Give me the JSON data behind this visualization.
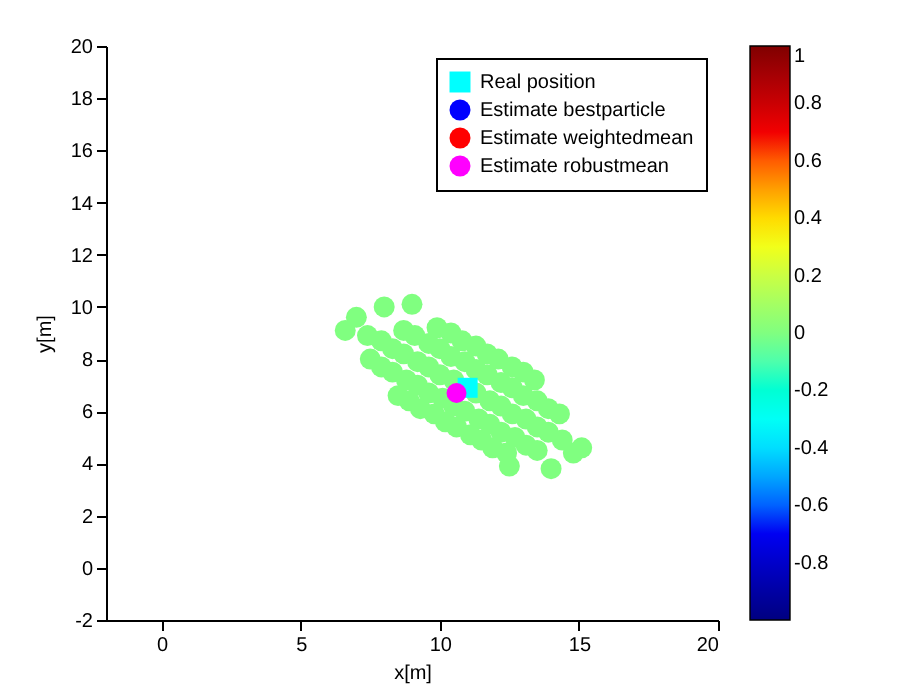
{
  "chart_data": {
    "type": "scatter",
    "xlabel": "x[m]",
    "ylabel": "y[m]",
    "xlim": [
      -2,
      20
    ],
    "xticks": [
      0,
      5,
      10,
      15,
      20
    ],
    "ylim": [
      -2,
      20
    ],
    "yticks": [
      -2,
      0,
      2,
      4,
      6,
      8,
      10,
      12,
      14,
      16,
      18,
      20
    ],
    "clim": [
      -1,
      1
    ],
    "cticks": [
      -0.8,
      -0.6,
      -0.4,
      -0.2,
      0,
      0.2,
      0.4,
      0.6,
      0.8,
      1
    ],
    "legend": "top right",
    "grid": false,
    "series": [
      {
        "type": "scatter",
        "marker": "circle",
        "x": [
          7.4,
          7.9,
          8.3,
          8.7,
          9.2,
          9.6,
          10.0,
          10.5,
          11.3,
          11.8,
          12.2,
          12.6,
          13.1,
          13.5,
          13.9,
          14.4,
          8.7,
          9.1,
          9.6,
          10.0,
          10.4,
          10.9,
          11.3,
          11.7,
          12.2,
          12.6,
          13.0,
          13.5,
          13.9,
          14.3,
          7.5,
          7.9,
          8.3,
          8.8,
          9.2,
          9.6,
          10.1,
          10.5,
          10.9,
          11.4,
          11.8,
          12.2,
          12.7,
          13.1,
          13.5,
          9.9,
          10.4,
          10.8,
          11.3,
          11.7,
          12.1,
          12.6,
          13.0,
          13.4,
          8.5,
          8.9,
          9.3,
          9.8,
          10.2,
          10.6,
          11.1,
          11.5,
          11.9,
          12.4,
          6.6,
          7.0,
          8.0,
          14.8,
          15.1,
          14.0,
          9.0,
          12.5
        ],
        "values": [
          8.9,
          8.7,
          8.4,
          8.2,
          7.9,
          7.7,
          7.4,
          7.2,
          6.7,
          6.4,
          6.2,
          5.9,
          5.7,
          5.4,
          5.2,
          4.9,
          9.1,
          8.9,
          8.6,
          8.4,
          8.1,
          7.9,
          7.6,
          7.4,
          7.1,
          6.9,
          6.6,
          6.4,
          6.1,
          5.9,
          8.0,
          7.7,
          7.5,
          7.2,
          7.0,
          6.7,
          6.5,
          6.2,
          6.0,
          5.7,
          5.5,
          5.2,
          5.0,
          4.7,
          4.5,
          9.2,
          9.0,
          8.7,
          8.5,
          8.2,
          8.0,
          7.7,
          7.5,
          7.2,
          6.6,
          6.4,
          6.1,
          5.9,
          5.6,
          5.4,
          5.1,
          4.9,
          4.6,
          4.4,
          9.1,
          9.6,
          10.0,
          4.4,
          4.6,
          3.8,
          10.1,
          3.9
        ],
        "cvalues": [
          0,
          0,
          0,
          0,
          0,
          0,
          0,
          0,
          0,
          0,
          0,
          0,
          0,
          0,
          0,
          0,
          0,
          0,
          0,
          0,
          0,
          0,
          0,
          0,
          0,
          0,
          0,
          0,
          0,
          0,
          0,
          0,
          0,
          0,
          0,
          0,
          0,
          0,
          0,
          0,
          0,
          0,
          0,
          0,
          0,
          0,
          0,
          0,
          0,
          0,
          0,
          0,
          0,
          0,
          0,
          0,
          0,
          0,
          0,
          0,
          0,
          0,
          0,
          0,
          0,
          0,
          0,
          0,
          0,
          0,
          0,
          0
        ]
      },
      {
        "type": "scatter",
        "name": "Real position",
        "color": "#00ffff",
        "marker": "square",
        "x": [
          11.0
        ],
        "values": [
          6.9
        ]
      },
      {
        "type": "scatter",
        "name": "Estimate bestparticle",
        "color": "#0000ff",
        "marker": "circle",
        "x": [
          null
        ],
        "values": [
          null
        ]
      },
      {
        "type": "scatter",
        "name": "Estimate weightedmean",
        "color": "#ff0000",
        "marker": "circle",
        "x": [
          null
        ],
        "values": [
          null
        ]
      },
      {
        "type": "scatter",
        "name": "Estimate robustmean",
        "color": "#ff00ff",
        "marker": "circle",
        "x": [
          10.6
        ],
        "values": [
          6.7
        ]
      }
    ]
  }
}
